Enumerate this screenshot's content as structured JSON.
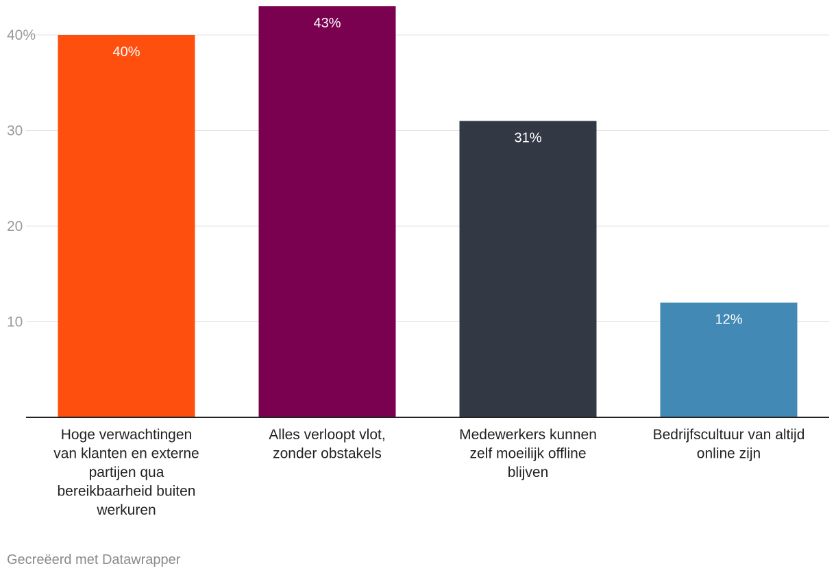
{
  "chart_data": {
    "type": "bar",
    "categories": [
      [
        "Hoge verwachtingen",
        "van klanten en externe",
        "partijen qua",
        "bereikbaarheid buiten",
        "werkuren"
      ],
      [
        "Alles verloopt vlot,",
        "zonder obstakels"
      ],
      [
        "Medewerkers kunnen",
        "zelf moeilijk offline",
        "blijven"
      ],
      [
        "Bedrijfscultuur van altijd",
        "online zijn"
      ]
    ],
    "values": [
      40,
      43,
      31,
      12
    ],
    "value_labels": [
      "40%",
      "43%",
      "31%",
      "12%"
    ],
    "colors": [
      "#ff4f0f",
      "#7a0050",
      "#323844",
      "#4389b5"
    ],
    "y_ticks": [
      {
        "value": 40,
        "label": "40%"
      },
      {
        "value": 30,
        "label": "30"
      },
      {
        "value": 20,
        "label": "20"
      },
      {
        "value": 10,
        "label": "10"
      }
    ],
    "ylim": [
      0,
      43
    ],
    "grid": true,
    "legend": "none"
  },
  "footer": {
    "credit": "Gecreëerd met Datawrapper"
  }
}
